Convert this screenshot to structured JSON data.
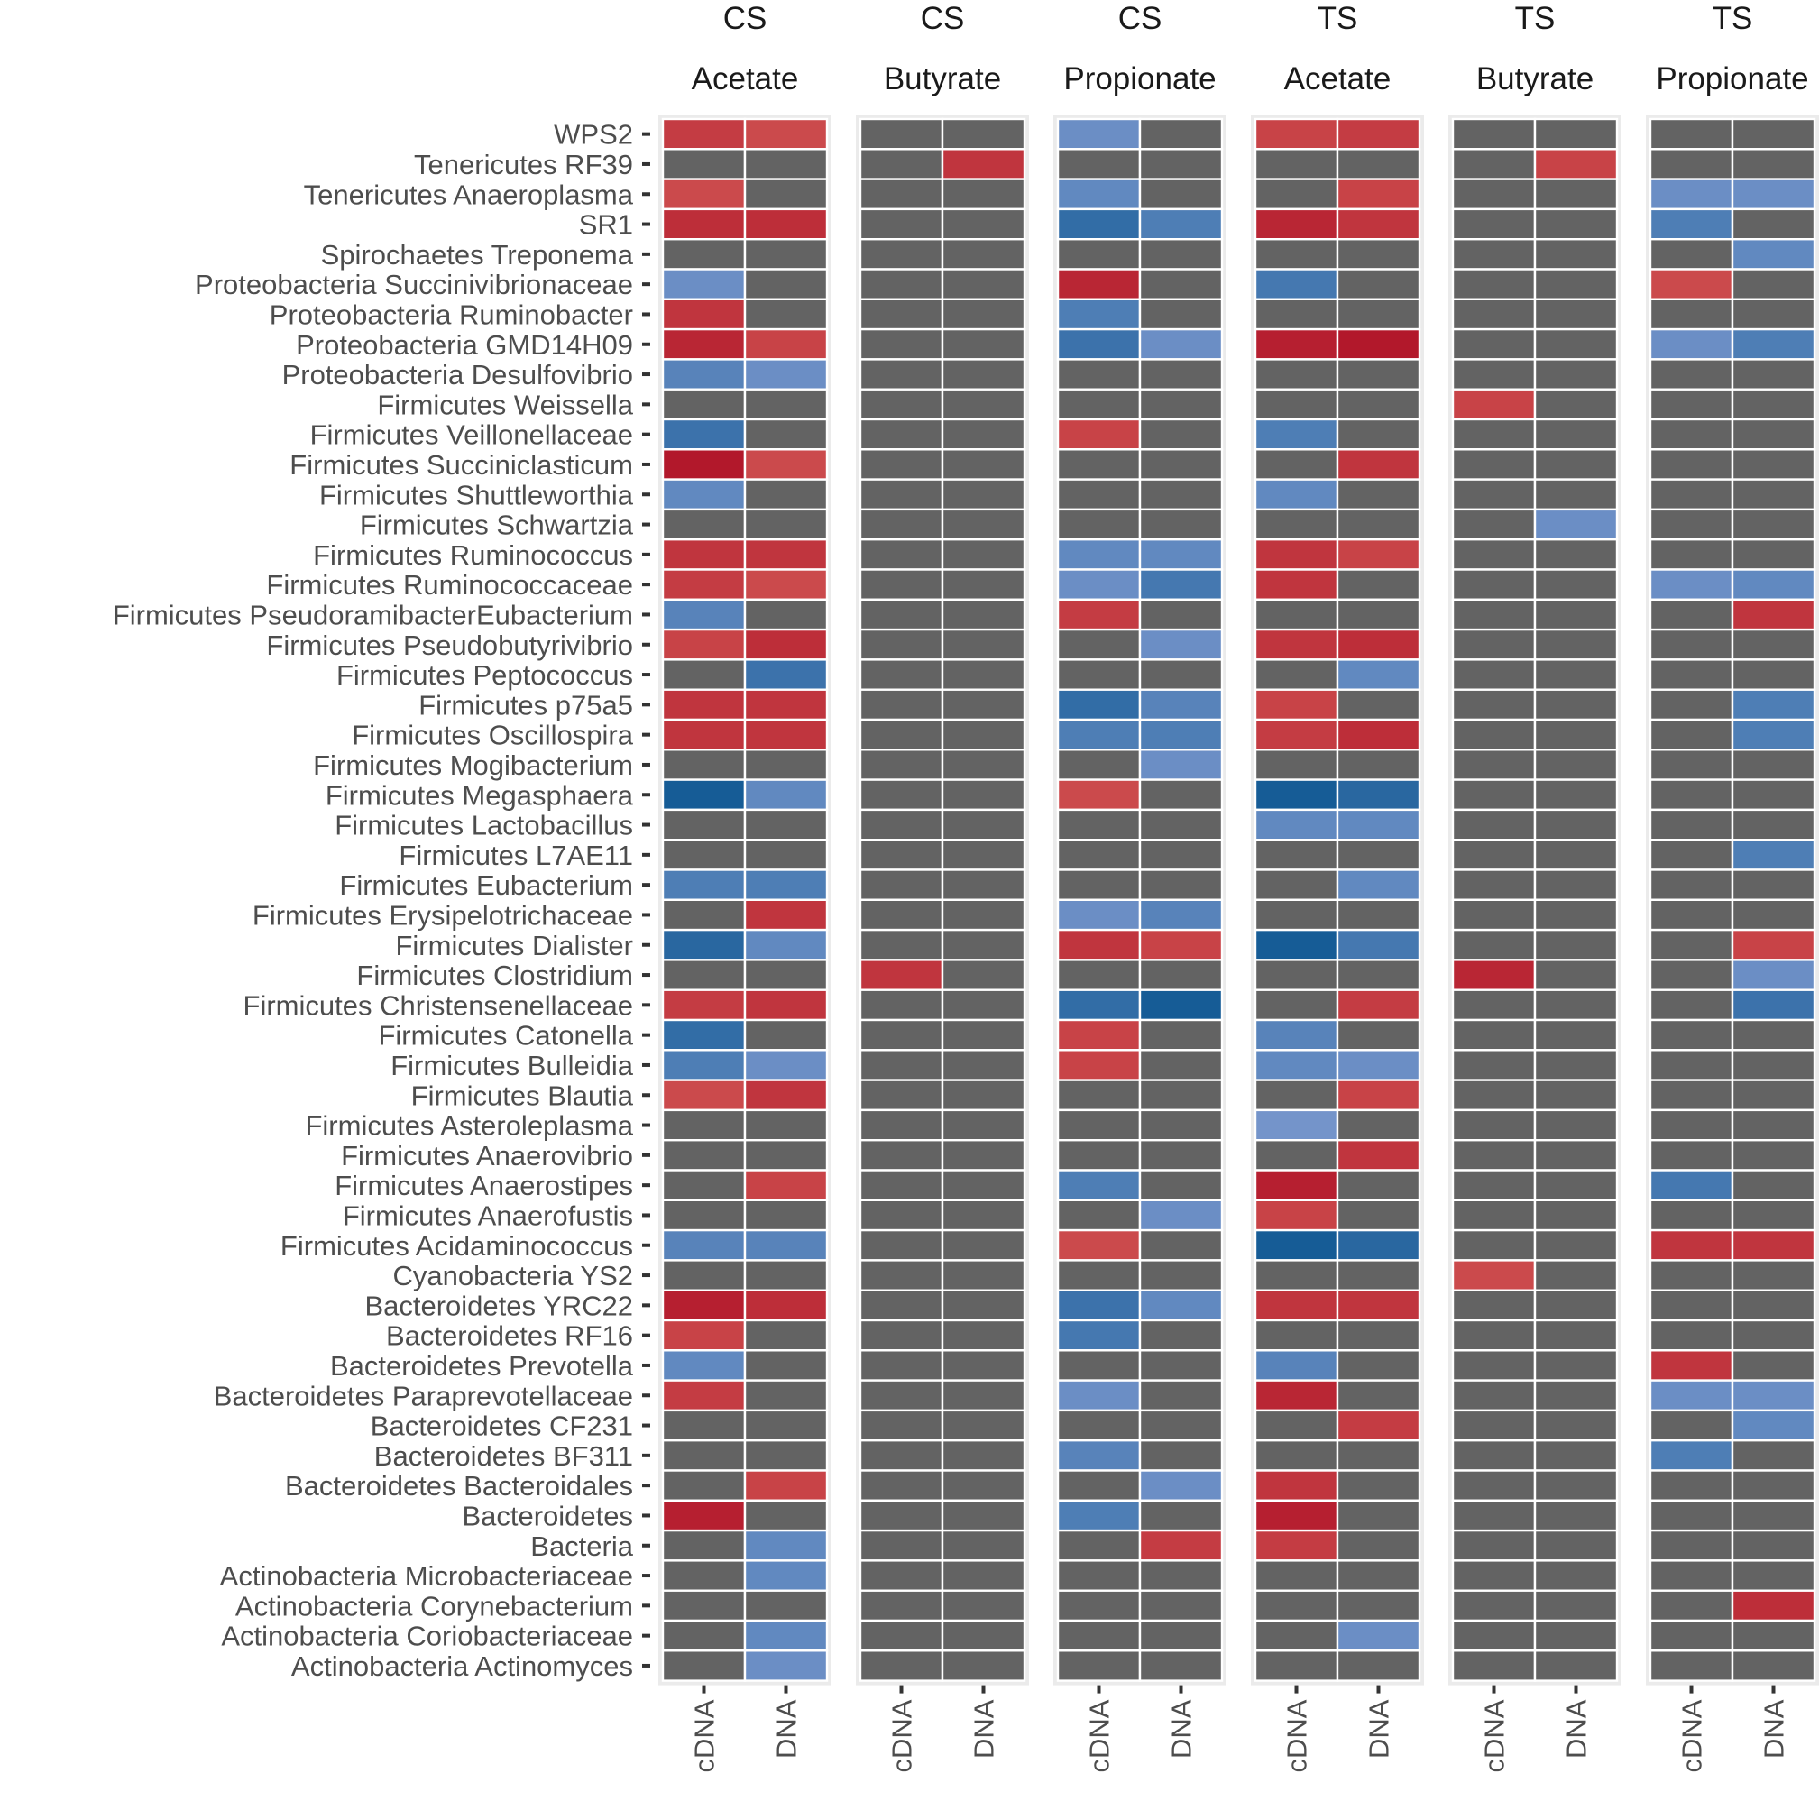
{
  "chart_data": {
    "type": "heatmap",
    "title": "",
    "xlabel": "",
    "ylabel": "",
    "facets": [
      {
        "group": "CS",
        "variable": "Acetate"
      },
      {
        "group": "CS",
        "variable": "Butyrate"
      },
      {
        "group": "CS",
        "variable": "Propionate"
      },
      {
        "group": "TS",
        "variable": "Acetate"
      },
      {
        "group": "TS",
        "variable": "Butyrate"
      },
      {
        "group": "TS",
        "variable": "Propionate"
      }
    ],
    "columns": [
      "cDNA",
      "DNA"
    ],
    "rows": [
      "WPS2",
      "Tenericutes RF39",
      "Tenericutes Anaeroplasma",
      "SR1",
      "Spirochaetes Treponema",
      "Proteobacteria Succinivibrionaceae",
      "Proteobacteria Ruminobacter",
      "Proteobacteria GMD14H09",
      "Proteobacteria Desulfovibrio",
      "Firmicutes Weissella",
      "Firmicutes Veillonellaceae",
      "Firmicutes Succiniclasticum",
      "Firmicutes Shuttleworthia",
      "Firmicutes Schwartzia",
      "Firmicutes Ruminococcus",
      "Firmicutes Ruminococcaceae",
      "Firmicutes PseudoramibacterEubacterium",
      "Firmicutes Pseudobutyrivibrio",
      "Firmicutes Peptococcus",
      "Firmicutes p75a5",
      "Firmicutes Oscillospira",
      "Firmicutes Mogibacterium",
      "Firmicutes Megasphaera",
      "Firmicutes Lactobacillus",
      "Firmicutes L7AE11",
      "Firmicutes Eubacterium",
      "Firmicutes Erysipelotrichaceae",
      "Firmicutes Dialister",
      "Firmicutes Clostridium",
      "Firmicutes Christensenellaceae",
      "Firmicutes Catonella",
      "Firmicutes Bulleidia",
      "Firmicutes Blautia",
      "Firmicutes Asteroleplasma",
      "Firmicutes Anaerovibrio",
      "Firmicutes Anaerostipes",
      "Firmicutes Anaerofustis",
      "Firmicutes Acidaminococcus",
      "Cyanobacteria YS2",
      "Bacteroidetes YRC22",
      "Bacteroidetes RF16",
      "Bacteroidetes Prevotella",
      "Bacteroidetes Paraprevotellaceae",
      "Bacteroidetes CF231",
      "Bacteroidetes BF311",
      "Bacteroidetes Bacteroidales",
      "Bacteroidetes",
      "Bacteria",
      "Actinobacteria Microbacteriaceae",
      "Actinobacteria Corynebacterium",
      "Actinobacteria Coriobacteriaceae",
      "Actinobacteria Actinomyces"
    ],
    "value_scale": "correlation (negative = blue, positive = red, non-significant = grey)",
    "values": [
      [
        [
          0.65,
          0.55
        ],
        [
          0,
          0
        ],
        [
          -0.45,
          0
        ],
        [
          0.6,
          0.65
        ],
        [
          0,
          0
        ],
        [
          0,
          0
        ]
      ],
      [
        [
          0,
          0
        ],
        [
          0,
          0.7
        ],
        [
          0,
          0
        ],
        [
          0,
          0
        ],
        [
          0,
          0.6
        ],
        [
          0,
          0
        ]
      ],
      [
        [
          0.55,
          0
        ],
        [
          0,
          0
        ],
        [
          -0.5,
          0
        ],
        [
          0,
          0.6
        ],
        [
          0,
          0
        ],
        [
          -0.45,
          -0.45
        ]
      ],
      [
        [
          0.75,
          0.75
        ],
        [
          0,
          0
        ],
        [
          -0.75,
          -0.6
        ],
        [
          0.8,
          0.7
        ],
        [
          0,
          0
        ],
        [
          -0.6,
          0
        ]
      ],
      [
        [
          0,
          0
        ],
        [
          0,
          0
        ],
        [
          0,
          0
        ],
        [
          0,
          0
        ],
        [
          0,
          0
        ],
        [
          0,
          -0.5
        ]
      ],
      [
        [
          -0.45,
          0
        ],
        [
          0,
          0
        ],
        [
          0.8,
          0
        ],
        [
          -0.65,
          0
        ],
        [
          0,
          0
        ],
        [
          0.55,
          0
        ]
      ],
      [
        [
          0.7,
          0
        ],
        [
          0,
          0
        ],
        [
          -0.6,
          0
        ],
        [
          0,
          0
        ],
        [
          0,
          0
        ],
        [
          0,
          0
        ]
      ],
      [
        [
          0.8,
          0.6
        ],
        [
          0,
          0
        ],
        [
          -0.7,
          -0.45
        ],
        [
          0.85,
          0.9
        ],
        [
          0,
          0
        ],
        [
          -0.45,
          -0.6
        ]
      ],
      [
        [
          -0.55,
          -0.45
        ],
        [
          0,
          0
        ],
        [
          0,
          0
        ],
        [
          0,
          0
        ],
        [
          0,
          0
        ],
        [
          0,
          0
        ]
      ],
      [
        [
          0,
          0
        ],
        [
          0,
          0
        ],
        [
          0,
          0
        ],
        [
          0,
          0
        ],
        [
          0.6,
          0
        ],
        [
          0,
          0
        ]
      ],
      [
        [
          -0.7,
          0
        ],
        [
          0,
          0
        ],
        [
          0.6,
          0
        ],
        [
          -0.6,
          0
        ],
        [
          0,
          0
        ],
        [
          0,
          0
        ]
      ],
      [
        [
          0.9,
          0.55
        ],
        [
          0,
          0
        ],
        [
          0,
          0
        ],
        [
          0,
          0.7
        ],
        [
          0,
          0
        ],
        [
          0,
          0
        ]
      ],
      [
        [
          -0.5,
          0
        ],
        [
          0,
          0
        ],
        [
          0,
          0
        ],
        [
          -0.5,
          0
        ],
        [
          0,
          0
        ],
        [
          0,
          0
        ]
      ],
      [
        [
          0,
          0
        ],
        [
          0,
          0
        ],
        [
          0,
          0
        ],
        [
          0,
          0
        ],
        [
          0,
          -0.45
        ],
        [
          0,
          0
        ]
      ],
      [
        [
          0.7,
          0.7
        ],
        [
          0,
          0
        ],
        [
          -0.5,
          -0.5
        ],
        [
          0.7,
          0.6
        ],
        [
          0,
          0
        ],
        [
          0,
          0
        ]
      ],
      [
        [
          0.65,
          0.55
        ],
        [
          0,
          0
        ],
        [
          -0.45,
          -0.65
        ],
        [
          0.7,
          0
        ],
        [
          0,
          0
        ],
        [
          -0.45,
          -0.5
        ]
      ],
      [
        [
          -0.55,
          0
        ],
        [
          0,
          0
        ],
        [
          0.65,
          0
        ],
        [
          0,
          0
        ],
        [
          0,
          0
        ],
        [
          0,
          0.7
        ]
      ],
      [
        [
          0.6,
          0.75
        ],
        [
          0,
          0
        ],
        [
          0,
          -0.45
        ],
        [
          0.7,
          0.75
        ],
        [
          0,
          0
        ],
        [
          0,
          0
        ]
      ],
      [
        [
          0,
          -0.7
        ],
        [
          0,
          0
        ],
        [
          0,
          0
        ],
        [
          0,
          -0.5
        ],
        [
          0,
          0
        ],
        [
          0,
          0
        ]
      ],
      [
        [
          0.7,
          0.7
        ],
        [
          0,
          0
        ],
        [
          -0.75,
          -0.55
        ],
        [
          0.6,
          0
        ],
        [
          0,
          0
        ],
        [
          0,
          -0.6
        ]
      ],
      [
        [
          0.7,
          0.7
        ],
        [
          0,
          0
        ],
        [
          -0.6,
          -0.6
        ],
        [
          0.65,
          0.75
        ],
        [
          0,
          0
        ],
        [
          0,
          -0.6
        ]
      ],
      [
        [
          0,
          0
        ],
        [
          0,
          0
        ],
        [
          0,
          -0.45
        ],
        [
          0,
          0
        ],
        [
          0,
          0
        ],
        [
          0,
          0
        ]
      ],
      [
        [
          -0.9,
          -0.5
        ],
        [
          0,
          0
        ],
        [
          0.55,
          0
        ],
        [
          -0.9,
          -0.8
        ],
        [
          0,
          0
        ],
        [
          0,
          0
        ]
      ],
      [
        [
          0,
          0
        ],
        [
          0,
          0
        ],
        [
          0,
          0
        ],
        [
          -0.5,
          -0.5
        ],
        [
          0,
          0
        ],
        [
          0,
          0
        ]
      ],
      [
        [
          0,
          0
        ],
        [
          0,
          0
        ],
        [
          0,
          0
        ],
        [
          0,
          0
        ],
        [
          0,
          0
        ],
        [
          0,
          -0.6
        ]
      ],
      [
        [
          -0.6,
          -0.6
        ],
        [
          0,
          0
        ],
        [
          0,
          0
        ],
        [
          0,
          -0.5
        ],
        [
          0,
          0
        ],
        [
          0,
          0
        ]
      ],
      [
        [
          0,
          0.7
        ],
        [
          0,
          0
        ],
        [
          -0.45,
          -0.55
        ],
        [
          0,
          0
        ],
        [
          0,
          0
        ],
        [
          0,
          0
        ]
      ],
      [
        [
          -0.8,
          -0.5
        ],
        [
          0,
          0
        ],
        [
          0.7,
          0.6
        ],
        [
          -0.9,
          -0.65
        ],
        [
          0,
          0
        ],
        [
          0,
          0.6
        ]
      ],
      [
        [
          0,
          0
        ],
        [
          0.7,
          0
        ],
        [
          0,
          0
        ],
        [
          0,
          0
        ],
        [
          0.8,
          0
        ],
        [
          0,
          -0.45
        ]
      ],
      [
        [
          0.65,
          0.7
        ],
        [
          0,
          0
        ],
        [
          -0.75,
          -0.9
        ],
        [
          0,
          0.65
        ],
        [
          0,
          0
        ],
        [
          0,
          -0.7
        ]
      ],
      [
        [
          -0.75,
          0
        ],
        [
          0,
          0
        ],
        [
          0.6,
          0
        ],
        [
          -0.55,
          0
        ],
        [
          0,
          0
        ],
        [
          0,
          0
        ]
      ],
      [
        [
          -0.6,
          -0.45
        ],
        [
          0,
          0
        ],
        [
          0.6,
          0
        ],
        [
          -0.5,
          -0.45
        ],
        [
          0,
          0
        ],
        [
          0,
          0
        ]
      ],
      [
        [
          0.55,
          0.7
        ],
        [
          0,
          0
        ],
        [
          0,
          0
        ],
        [
          0,
          0.6
        ],
        [
          0,
          0
        ],
        [
          0,
          0
        ]
      ],
      [
        [
          0,
          0
        ],
        [
          0,
          0
        ],
        [
          0,
          0
        ],
        [
          -0.4,
          0
        ],
        [
          0,
          0
        ],
        [
          0,
          0
        ]
      ],
      [
        [
          0,
          0
        ],
        [
          0,
          0
        ],
        [
          0,
          0
        ],
        [
          0,
          0.7
        ],
        [
          0,
          0
        ],
        [
          0,
          0
        ]
      ],
      [
        [
          0,
          0.6
        ],
        [
          0,
          0
        ],
        [
          -0.6,
          0
        ],
        [
          0.85,
          0
        ],
        [
          0,
          0
        ],
        [
          -0.65,
          0
        ]
      ],
      [
        [
          0,
          0
        ],
        [
          0,
          0
        ],
        [
          0,
          -0.45
        ],
        [
          0.6,
          0
        ],
        [
          0,
          0
        ],
        [
          0,
          0
        ]
      ],
      [
        [
          -0.55,
          -0.55
        ],
        [
          0,
          0
        ],
        [
          0.55,
          0
        ],
        [
          -0.9,
          -0.8
        ],
        [
          0,
          0
        ],
        [
          0.7,
          0.7
        ]
      ],
      [
        [
          0,
          0
        ],
        [
          0,
          0
        ],
        [
          0,
          0
        ],
        [
          0,
          0
        ],
        [
          0.55,
          0
        ],
        [
          0,
          0
        ]
      ],
      [
        [
          0.85,
          0.75
        ],
        [
          0,
          0
        ],
        [
          -0.7,
          -0.5
        ],
        [
          0.7,
          0.7
        ],
        [
          0,
          0
        ],
        [
          0,
          0
        ]
      ],
      [
        [
          0.6,
          0
        ],
        [
          0,
          0
        ],
        [
          -0.65,
          0
        ],
        [
          0,
          0
        ],
        [
          0,
          0
        ],
        [
          0,
          0
        ]
      ],
      [
        [
          -0.5,
          0
        ],
        [
          0,
          0
        ],
        [
          0,
          0
        ],
        [
          -0.55,
          0
        ],
        [
          0,
          0
        ],
        [
          0.7,
          0
        ]
      ],
      [
        [
          0.65,
          0
        ],
        [
          0,
          0
        ],
        [
          -0.45,
          0
        ],
        [
          0.8,
          0
        ],
        [
          0,
          0
        ],
        [
          -0.45,
          -0.45
        ]
      ],
      [
        [
          0,
          0
        ],
        [
          0,
          0
        ],
        [
          0,
          0
        ],
        [
          0,
          0.65
        ],
        [
          0,
          0
        ],
        [
          0,
          -0.5
        ]
      ],
      [
        [
          0,
          0
        ],
        [
          0,
          0
        ],
        [
          -0.55,
          0
        ],
        [
          0,
          0
        ],
        [
          0,
          0
        ],
        [
          -0.6,
          0
        ]
      ],
      [
        [
          0,
          0.6
        ],
        [
          0,
          0
        ],
        [
          0,
          -0.45
        ],
        [
          0.7,
          0
        ],
        [
          0,
          0
        ],
        [
          0,
          0
        ]
      ],
      [
        [
          0.85,
          0
        ],
        [
          0,
          0
        ],
        [
          -0.6,
          0
        ],
        [
          0.85,
          0
        ],
        [
          0,
          0
        ],
        [
          0,
          0
        ]
      ],
      [
        [
          0,
          -0.5
        ],
        [
          0,
          0
        ],
        [
          0,
          0.65
        ],
        [
          0.65,
          0
        ],
        [
          0,
          0
        ],
        [
          0,
          0
        ]
      ],
      [
        [
          0,
          -0.5
        ],
        [
          0,
          0
        ],
        [
          0,
          0
        ],
        [
          0,
          0
        ],
        [
          0,
          0
        ],
        [
          0,
          0
        ]
      ],
      [
        [
          0,
          0
        ],
        [
          0,
          0
        ],
        [
          0,
          0
        ],
        [
          0,
          0
        ],
        [
          0,
          0
        ],
        [
          0,
          0.75
        ]
      ],
      [
        [
          0,
          -0.5
        ],
        [
          0,
          0
        ],
        [
          0,
          0
        ],
        [
          0,
          -0.45
        ],
        [
          0,
          0
        ],
        [
          0,
          0
        ]
      ],
      [
        [
          0,
          -0.45
        ],
        [
          0,
          0
        ],
        [
          0,
          0
        ],
        [
          0,
          0
        ],
        [
          0,
          0
        ],
        [
          0,
          0
        ]
      ]
    ]
  }
}
